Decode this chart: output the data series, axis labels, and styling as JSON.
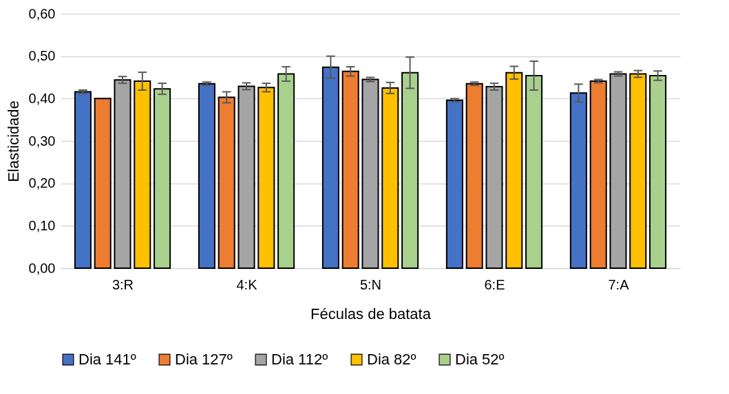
{
  "chart_data": {
    "type": "bar",
    "xlabel": "Féculas de batata",
    "ylabel": "Elasticidade",
    "categories": [
      "3:R",
      "4:K",
      "5:N",
      "6:E",
      "7:A"
    ],
    "series": [
      {
        "name": "Dia 141º",
        "color": "#4472c4",
        "values": [
          0.416,
          0.435,
          0.474,
          0.396,
          0.413
        ],
        "errors": [
          0.004,
          0.004,
          0.026,
          0.004,
          0.021
        ]
      },
      {
        "name": "Dia 127º",
        "color": "#ed7d31",
        "values": [
          0.4,
          0.403,
          0.464,
          0.435,
          0.441
        ],
        "errors": [
          null,
          0.013,
          0.011,
          0.004,
          0.004
        ]
      },
      {
        "name": "Dia 112º",
        "color": "#a5a5a5",
        "values": [
          0.444,
          0.429,
          0.445,
          0.428,
          0.458
        ],
        "errors": [
          0.008,
          0.008,
          0.005,
          0.008,
          0.005
        ]
      },
      {
        "name": "Dia 82º",
        "color": "#ffc000",
        "values": [
          0.441,
          0.426,
          0.425,
          0.461,
          0.458
        ],
        "errors": [
          0.021,
          0.01,
          0.013,
          0.015,
          0.008
        ]
      },
      {
        "name": "Dia 52º",
        "color": "#a9d18e",
        "values": [
          0.423,
          0.458,
          0.461,
          0.454,
          0.454
        ],
        "errors": [
          0.013,
          0.017,
          0.037,
          0.034,
          0.011
        ]
      }
    ],
    "ylim": [
      0,
      0.6
    ],
    "yticks": [
      {
        "value": 0,
        "label": "0,00"
      },
      {
        "value": 0.1,
        "label": "0,10"
      },
      {
        "value": 0.2,
        "label": "0,20"
      },
      {
        "value": 0.3,
        "label": "0,30"
      },
      {
        "value": 0.4,
        "label": "0,40"
      },
      {
        "value": 0.5,
        "label": "0,50"
      },
      {
        "value": 0.6,
        "label": "0,60"
      }
    ],
    "grid": "y",
    "legend": "bottom"
  }
}
